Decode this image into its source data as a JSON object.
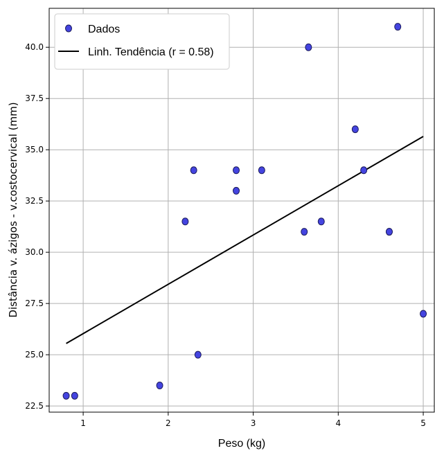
{
  "chart_data": {
    "type": "scatter",
    "xlabel": "Peso (kg)",
    "ylabel": "Distância v. ázigos - v.costocervical (mm)",
    "xlim": [
      0.6,
      5.13
    ],
    "ylim": [
      22.2,
      41.9
    ],
    "xticks": [
      1,
      2,
      3,
      4,
      5
    ],
    "yticks": [
      22.5,
      25.0,
      27.5,
      30.0,
      32.5,
      35.0,
      37.5,
      40.0
    ],
    "ytick_labels": [
      "22.5",
      "25.0",
      "27.5",
      "30.0",
      "32.5",
      "35.0",
      "37.5",
      "40.0"
    ],
    "grid": true,
    "legend_position": "top-left",
    "series": [
      {
        "name": "Dados",
        "kind": "scatter",
        "color": "#4444e0",
        "edge_color": "#1a1a5a",
        "points": [
          {
            "x": 0.8,
            "y": 23.0
          },
          {
            "x": 0.9,
            "y": 23.0
          },
          {
            "x": 1.9,
            "y": 23.5
          },
          {
            "x": 2.2,
            "y": 31.5
          },
          {
            "x": 2.3,
            "y": 34.0
          },
          {
            "x": 2.35,
            "y": 25.0
          },
          {
            "x": 2.8,
            "y": 34.0
          },
          {
            "x": 2.8,
            "y": 33.0
          },
          {
            "x": 3.1,
            "y": 34.0
          },
          {
            "x": 3.6,
            "y": 31.0
          },
          {
            "x": 3.65,
            "y": 40.0
          },
          {
            "x": 3.8,
            "y": 31.5
          },
          {
            "x": 4.2,
            "y": 36.0
          },
          {
            "x": 4.3,
            "y": 34.0
          },
          {
            "x": 4.6,
            "y": 31.0
          },
          {
            "x": 4.6,
            "y": 31.0
          },
          {
            "x": 4.7,
            "y": 41.0
          },
          {
            "x": 5.0,
            "y": 27.0
          }
        ]
      },
      {
        "name": "Linh. Tendência (r = 0.58)",
        "kind": "line",
        "color": "#000000",
        "points": [
          {
            "x": 0.8,
            "y": 25.55
          },
          {
            "x": 5.0,
            "y": 35.65
          }
        ]
      }
    ]
  }
}
